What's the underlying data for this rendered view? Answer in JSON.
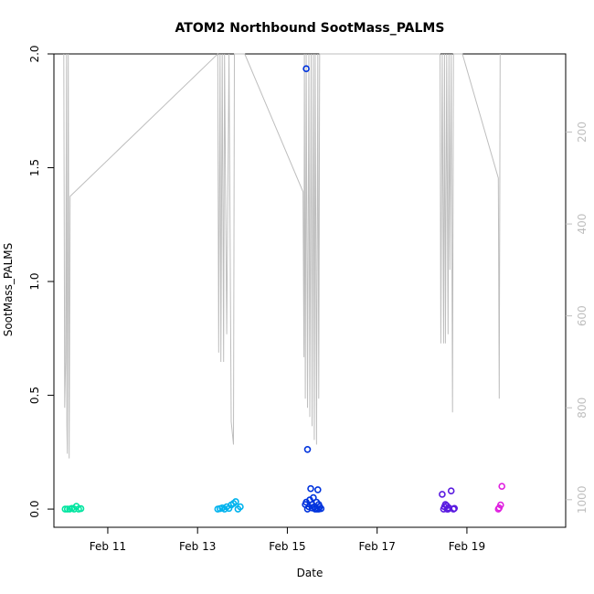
{
  "chart_data": {
    "type": "scatter",
    "title": "ATOM2 Northbound SootMass_PALMS",
    "xlabel": "Date",
    "ylabel": "SootMass_PALMS",
    "x_tick_labels": [
      "Feb 11",
      "Feb 13",
      "Feb 15",
      "Feb 17",
      "Feb 19"
    ],
    "x_tick_days": [
      11,
      13,
      15,
      17,
      19
    ],
    "xlim_days": [
      9.8,
      21.2
    ],
    "y_ticks": [
      "0.0",
      "0.5",
      "1.0",
      "1.5",
      "2.0"
    ],
    "y_tick_values": [
      0.0,
      0.5,
      1.0,
      1.5,
      2.0
    ],
    "ylim": [
      -0.08,
      2.0
    ],
    "y2_ticks": [
      "200",
      "400",
      "600",
      "800",
      "1000"
    ],
    "y2_tick_values": [
      200,
      400,
      600,
      800,
      1000
    ],
    "y2lim_reversed": [
      1060,
      30
    ],
    "grid": false,
    "series": [
      {
        "color": "#00e5a0",
        "points": [
          [
            10.05,
            0.0
          ],
          [
            10.1,
            0.0
          ],
          [
            10.15,
            0.0
          ],
          [
            10.2,
            0.003
          ],
          [
            10.25,
            0.0
          ],
          [
            10.3,
            0.012
          ],
          [
            10.35,
            0.0
          ],
          [
            10.4,
            0.002
          ]
        ]
      },
      {
        "color": "#00b3ee",
        "points": [
          [
            13.45,
            0.0
          ],
          [
            13.5,
            0.002
          ],
          [
            13.55,
            0.005
          ],
          [
            13.6,
            0.0
          ],
          [
            13.65,
            0.01
          ],
          [
            13.7,
            0.003
          ],
          [
            13.75,
            0.018
          ],
          [
            13.8,
            0.025
          ],
          [
            13.85,
            0.033
          ],
          [
            13.9,
            0.0
          ],
          [
            13.95,
            0.01
          ]
        ]
      },
      {
        "color": "#0033dd",
        "points": [
          [
            15.42,
            1.935
          ],
          [
            15.45,
            0.262
          ],
          [
            15.4,
            0.02
          ],
          [
            15.45,
            0.0
          ],
          [
            15.5,
            0.04
          ],
          [
            15.52,
            0.09
          ],
          [
            15.55,
            0.02
          ],
          [
            15.58,
            0.05
          ],
          [
            15.6,
            0.01
          ],
          [
            15.65,
            0.03
          ],
          [
            15.68,
            0.085
          ],
          [
            15.7,
            0.0
          ],
          [
            15.72,
            0.01
          ],
          [
            15.75,
            0.002
          ],
          [
            15.42,
            0.03
          ],
          [
            15.48,
            0.01
          ],
          [
            15.55,
            0.005
          ],
          [
            15.62,
            0.0
          ],
          [
            15.66,
            0.0
          ],
          [
            15.7,
            0.02
          ]
        ]
      },
      {
        "color": "#5a1be0",
        "points": [
          [
            18.45,
            0.065
          ],
          [
            18.5,
            0.01
          ],
          [
            18.52,
            0.02
          ],
          [
            18.55,
            0.015
          ],
          [
            18.58,
            0.0
          ],
          [
            18.6,
            0.005
          ],
          [
            18.65,
            0.08
          ],
          [
            18.7,
            0.0
          ],
          [
            18.72,
            0.003
          ],
          [
            18.48,
            0.0
          ],
          [
            18.56,
            0.0
          ]
        ]
      },
      {
        "color": "#e020e0",
        "points": [
          [
            19.7,
            0.0
          ],
          [
            19.75,
            0.018
          ],
          [
            19.78,
            0.1
          ],
          [
            19.72,
            0.005
          ]
        ]
      }
    ],
    "altitude_profile": {
      "color": "#bebebe",
      "points": [
        [
          10.02,
          30
        ],
        [
          10.04,
          800
        ],
        [
          10.06,
          700
        ],
        [
          10.08,
          30
        ],
        [
          10.09,
          840
        ],
        [
          10.1,
          900
        ],
        [
          10.12,
          30
        ],
        [
          10.14,
          910
        ],
        [
          10.16,
          340
        ],
        [
          13.45,
          30
        ],
        [
          13.47,
          680
        ],
        [
          13.5,
          30
        ],
        [
          13.52,
          700
        ],
        [
          13.55,
          30
        ],
        [
          13.58,
          700
        ],
        [
          13.6,
          30
        ],
        [
          13.65,
          640
        ],
        [
          13.7,
          30
        ],
        [
          13.75,
          830
        ],
        [
          13.8,
          880
        ],
        [
          13.82,
          30
        ],
        [
          14.05,
          30
        ],
        [
          15.35,
          330
        ],
        [
          15.37,
          690
        ],
        [
          15.38,
          30
        ],
        [
          15.4,
          780
        ],
        [
          15.42,
          30
        ],
        [
          15.45,
          800
        ],
        [
          15.48,
          30
        ],
        [
          15.5,
          820
        ],
        [
          15.53,
          30
        ],
        [
          15.55,
          840
        ],
        [
          15.58,
          30
        ],
        [
          15.6,
          870
        ],
        [
          15.62,
          30
        ],
        [
          15.65,
          880
        ],
        [
          15.68,
          30
        ],
        [
          15.7,
          780
        ],
        [
          15.72,
          30
        ],
        [
          18.4,
          30
        ],
        [
          18.42,
          660
        ],
        [
          18.45,
          30
        ],
        [
          18.48,
          660
        ],
        [
          18.5,
          30
        ],
        [
          18.52,
          660
        ],
        [
          18.55,
          30
        ],
        [
          18.58,
          640
        ],
        [
          18.6,
          30
        ],
        [
          18.62,
          500
        ],
        [
          18.65,
          30
        ],
        [
          18.68,
          810
        ],
        [
          18.7,
          30
        ],
        [
          18.72,
          30
        ],
        [
          18.9,
          30
        ],
        [
          19.7,
          300
        ],
        [
          19.72,
          780
        ],
        [
          19.74,
          30
        ]
      ]
    }
  }
}
